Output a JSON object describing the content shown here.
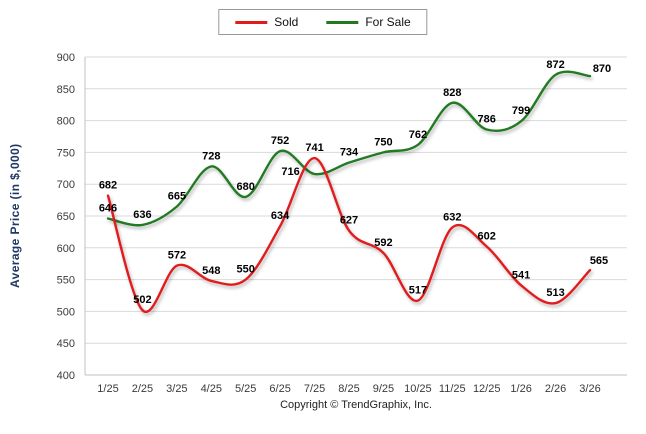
{
  "chart_data": {
    "type": "line",
    "title": "",
    "xlabel": "",
    "ylabel": "Average Price (in $,000)",
    "ylim": [
      400,
      900
    ],
    "ytick_step": 50,
    "grid": true,
    "legend_position": "top-center",
    "categories": [
      "1/25",
      "2/25",
      "3/25",
      "4/25",
      "5/25",
      "6/25",
      "7/25",
      "8/25",
      "9/25",
      "10/25",
      "11/25",
      "12/25",
      "1/26",
      "2/26",
      "3/26"
    ],
    "series": [
      {
        "name": "Sold",
        "color": "#e11a1c",
        "values": [
          682,
          502,
          572,
          548,
          550,
          634,
          741,
          627,
          592,
          517,
          632,
          602,
          541,
          513,
          565
        ]
      },
      {
        "name": "For Sale",
        "color": "#217a21",
        "values": [
          646,
          636,
          665,
          728,
          680,
          752,
          716,
          734,
          750,
          762,
          828,
          786,
          799,
          872,
          870
        ]
      }
    ]
  },
  "footer": {
    "copyright": "Copyright © TrendGraphix, Inc."
  },
  "colors": {
    "sold": "#e11a1c",
    "for_sale": "#217a21",
    "axis_title": "#1f3864",
    "tick_label": "#3a3a3a",
    "grid_line": "#d9d9d9",
    "axis_line": "#c0c0c0",
    "data_label": "#000000"
  }
}
